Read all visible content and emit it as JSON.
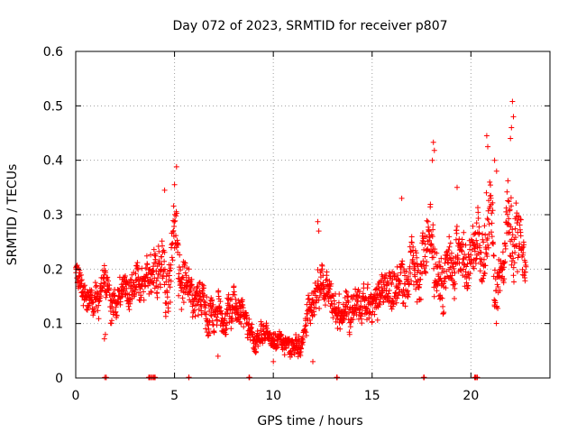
{
  "chart_data": {
    "type": "scatter",
    "title": "Day 072 of 2023, SRMTID for receiver p807",
    "xlabel": "GPS time / hours",
    "ylabel": "SRMTID / TECUs",
    "xlim": [
      0,
      24
    ],
    "ylim": [
      0,
      0.6
    ],
    "xticks": [
      0,
      5,
      10,
      15,
      20
    ],
    "yticks": [
      0,
      0.1,
      0.2,
      0.3,
      0.4,
      0.5,
      0.6
    ],
    "xtick_labels": [
      "0",
      "5",
      "10",
      "15",
      "20"
    ],
    "ytick_labels": [
      "0",
      "0.1",
      "0.2",
      "0.3",
      "0.4",
      "0.5",
      "0.6"
    ],
    "grid": true,
    "marker": "+",
    "color": "#ff0000",
    "profile": {
      "description": "typical SRMTID level vs hour, with spread; points sampled every ~0.01 h over 0 to 22.8 h",
      "x": [
        0,
        0.5,
        1,
        1.5,
        2,
        2.5,
        3,
        3.5,
        4,
        4.5,
        5,
        5.5,
        6,
        6.5,
        7,
        7.5,
        8,
        8.5,
        9,
        9.5,
        10,
        10.5,
        11,
        11.5,
        12,
        12.5,
        13,
        13.5,
        14,
        14.5,
        15,
        15.5,
        16,
        16.5,
        17,
        17.5,
        18,
        18.5,
        19,
        19.5,
        20,
        20.5,
        21,
        21.5,
        22,
        22.5,
        22.8
      ],
      "y": [
        0.18,
        0.16,
        0.14,
        0.17,
        0.13,
        0.16,
        0.18,
        0.15,
        0.17,
        0.2,
        0.26,
        0.2,
        0.14,
        0.16,
        0.1,
        0.12,
        0.13,
        0.12,
        0.07,
        0.07,
        0.065,
        0.06,
        0.07,
        0.06,
        0.17,
        0.17,
        0.12,
        0.13,
        0.15,
        0.14,
        0.12,
        0.16,
        0.17,
        0.2,
        0.21,
        0.22,
        0.25,
        0.2,
        0.21,
        0.24,
        0.2,
        0.22,
        0.25,
        0.18,
        0.23,
        0.22,
        0.23
      ],
      "spread": [
        0.04,
        0.04,
        0.04,
        0.05,
        0.04,
        0.04,
        0.06,
        0.05,
        0.07,
        0.08,
        0.09,
        0.08,
        0.05,
        0.06,
        0.05,
        0.04,
        0.05,
        0.04,
        0.03,
        0.03,
        0.025,
        0.025,
        0.03,
        0.03,
        0.06,
        0.05,
        0.05,
        0.05,
        0.05,
        0.05,
        0.05,
        0.06,
        0.06,
        0.07,
        0.08,
        0.09,
        0.1,
        0.08,
        0.08,
        0.08,
        0.08,
        0.09,
        0.12,
        0.06,
        0.12,
        0.08,
        0.05
      ]
    },
    "highlights": [
      {
        "x": 5.1,
        "y": 0.388
      },
      {
        "x": 5.0,
        "y": 0.355
      },
      {
        "x": 4.5,
        "y": 0.345
      },
      {
        "x": 18.1,
        "y": 0.433
      },
      {
        "x": 18.15,
        "y": 0.418
      },
      {
        "x": 18.05,
        "y": 0.4
      },
      {
        "x": 20.8,
        "y": 0.445
      },
      {
        "x": 20.85,
        "y": 0.425
      },
      {
        "x": 21.2,
        "y": 0.4
      },
      {
        "x": 21.3,
        "y": 0.38
      },
      {
        "x": 22.1,
        "y": 0.508
      },
      {
        "x": 22.15,
        "y": 0.48
      },
      {
        "x": 22.05,
        "y": 0.46
      },
      {
        "x": 22.0,
        "y": 0.44
      },
      {
        "x": 16.5,
        "y": 0.33
      },
      {
        "x": 19.3,
        "y": 0.35
      },
      {
        "x": 12.25,
        "y": 0.287
      },
      {
        "x": 12.3,
        "y": 0.27
      },
      {
        "x": 1.5,
        "y": 0.08
      },
      {
        "x": 1.45,
        "y": 0.072
      },
      {
        "x": 12.0,
        "y": 0.03
      },
      {
        "x": 10.0,
        "y": 0.03
      },
      {
        "x": 7.2,
        "y": 0.04
      }
    ],
    "zero_points": [
      1.5,
      3.7,
      3.8,
      3.9,
      4.0,
      5.7,
      8.8,
      13.2,
      17.6,
      20.2,
      20.3
    ]
  }
}
